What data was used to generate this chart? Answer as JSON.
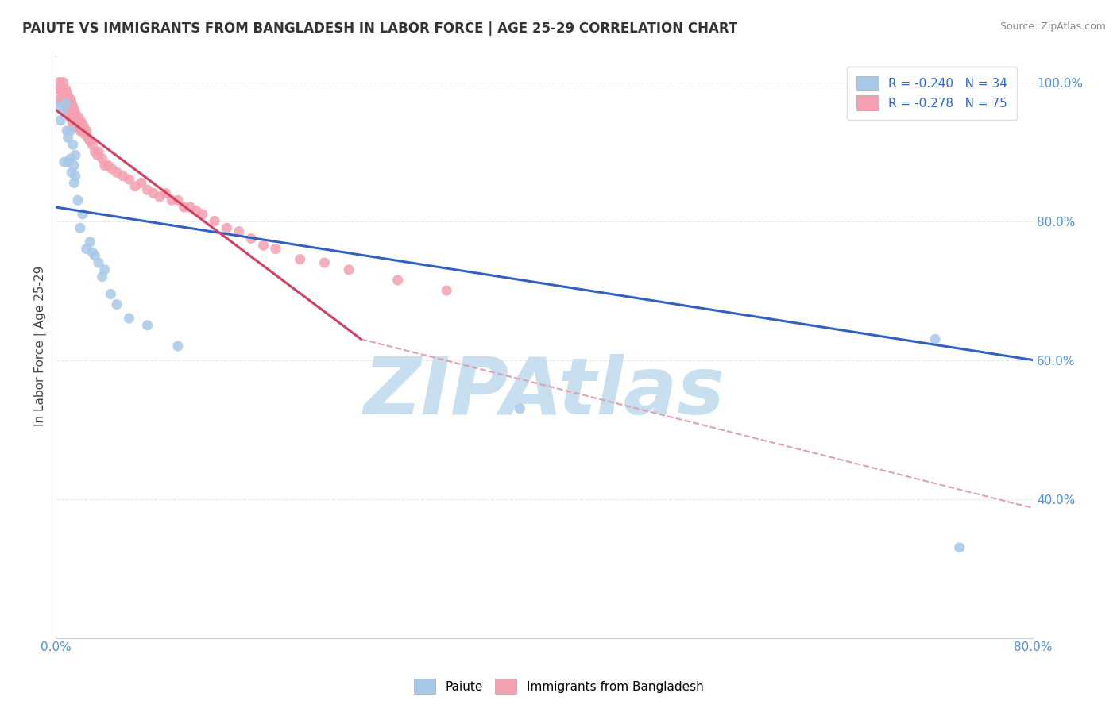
{
  "title": "PAIUTE VS IMMIGRANTS FROM BANGLADESH IN LABOR FORCE | AGE 25-29 CORRELATION CHART",
  "source_text": "Source: ZipAtlas.com",
  "ylabel": "In Labor Force | Age 25-29",
  "xlim": [
    0.0,
    0.8
  ],
  "ylim": [
    0.2,
    1.04
  ],
  "x_ticks": [
    0.0,
    0.1,
    0.2,
    0.3,
    0.4,
    0.5,
    0.6,
    0.7,
    0.8
  ],
  "x_tick_labels": [
    "0.0%",
    "",
    "",
    "",
    "",
    "",
    "",
    "",
    "80.0%"
  ],
  "y_ticks": [
    0.4,
    0.6,
    0.8,
    1.0
  ],
  "y_tick_labels": [
    "40.0%",
    "60.0%",
    "80.0%",
    "100.0%"
  ],
  "legend_labels_bottom": [
    "Paiute",
    "Immigrants from Bangladesh"
  ],
  "blue_color": "#a8c8e8",
  "pink_color": "#f4a0b0",
  "blue_line_color": "#3060c0",
  "pink_line_color": "#d04060",
  "dashed_line_color": "#e0a0b0",
  "watermark_text": "ZIPAtlas",
  "watermark_color": "#c8dff0",
  "background_color": "#ffffff",
  "grid_color": "#e8e8e8",
  "legend_r_blue": "R = -0.240   N = 34",
  "legend_r_pink": "R = -0.278   N = 75",
  "paiute_x": [
    0.002,
    0.004,
    0.006,
    0.007,
    0.008,
    0.009,
    0.01,
    0.01,
    0.012,
    0.012,
    0.013,
    0.014,
    0.015,
    0.015,
    0.016,
    0.016,
    0.018,
    0.02,
    0.022,
    0.025,
    0.028,
    0.03,
    0.032,
    0.035,
    0.038,
    0.04,
    0.045,
    0.05,
    0.06,
    0.075,
    0.1,
    0.38,
    0.72,
    0.74
  ],
  "paiute_y": [
    0.965,
    0.945,
    0.96,
    0.885,
    0.97,
    0.93,
    0.885,
    0.92,
    0.89,
    0.93,
    0.87,
    0.91,
    0.88,
    0.855,
    0.895,
    0.865,
    0.83,
    0.79,
    0.81,
    0.76,
    0.77,
    0.755,
    0.75,
    0.74,
    0.72,
    0.73,
    0.695,
    0.68,
    0.66,
    0.65,
    0.62,
    0.53,
    0.63,
    0.33
  ],
  "bangladesh_x": [
    0.002,
    0.003,
    0.003,
    0.004,
    0.005,
    0.005,
    0.006,
    0.006,
    0.007,
    0.007,
    0.008,
    0.008,
    0.009,
    0.009,
    0.01,
    0.01,
    0.01,
    0.011,
    0.011,
    0.012,
    0.012,
    0.013,
    0.013,
    0.014,
    0.014,
    0.015,
    0.015,
    0.016,
    0.016,
    0.017,
    0.018,
    0.019,
    0.02,
    0.02,
    0.021,
    0.022,
    0.023,
    0.024,
    0.025,
    0.026,
    0.028,
    0.03,
    0.032,
    0.034,
    0.035,
    0.038,
    0.04,
    0.043,
    0.046,
    0.05,
    0.055,
    0.06,
    0.065,
    0.07,
    0.075,
    0.08,
    0.085,
    0.09,
    0.095,
    0.1,
    0.105,
    0.11,
    0.115,
    0.12,
    0.13,
    0.14,
    0.15,
    0.16,
    0.17,
    0.18,
    0.2,
    0.22,
    0.24,
    0.28,
    0.32
  ],
  "bangladesh_y": [
    0.99,
    1.0,
    0.975,
    0.99,
    0.985,
    0.975,
    1.0,
    0.985,
    0.98,
    0.96,
    0.99,
    0.97,
    0.985,
    0.965,
    0.98,
    0.97,
    0.955,
    0.975,
    0.96,
    0.975,
    0.95,
    0.97,
    0.945,
    0.965,
    0.94,
    0.96,
    0.94,
    0.955,
    0.935,
    0.945,
    0.95,
    0.94,
    0.945,
    0.93,
    0.93,
    0.94,
    0.935,
    0.925,
    0.93,
    0.92,
    0.915,
    0.91,
    0.9,
    0.895,
    0.9,
    0.89,
    0.88,
    0.88,
    0.875,
    0.87,
    0.865,
    0.86,
    0.85,
    0.855,
    0.845,
    0.84,
    0.835,
    0.84,
    0.83,
    0.83,
    0.82,
    0.82,
    0.815,
    0.81,
    0.8,
    0.79,
    0.785,
    0.775,
    0.765,
    0.76,
    0.745,
    0.74,
    0.73,
    0.715,
    0.7
  ],
  "blue_trend_x": [
    0.0,
    0.8
  ],
  "blue_trend_y": [
    0.82,
    0.6
  ],
  "pink_trend_x": [
    0.0,
    0.25
  ],
  "pink_trend_y": [
    0.96,
    0.63
  ],
  "dash_trend_x": [
    0.25,
    0.8
  ],
  "dash_trend_y": [
    0.63,
    0.387
  ]
}
